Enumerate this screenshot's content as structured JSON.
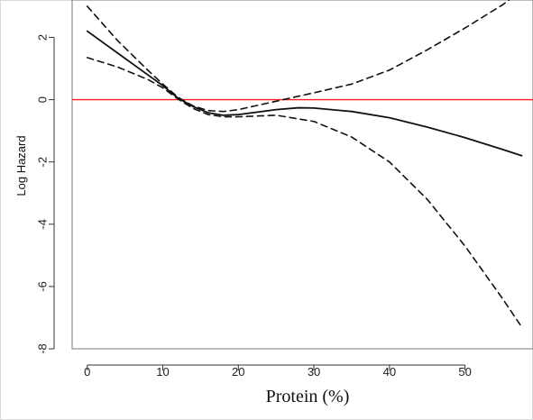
{
  "chart_data": {
    "type": "line",
    "title": "",
    "xlabel": "Protein (%)",
    "ylabel": "Log Hazard",
    "xlim": [
      -2,
      59
    ],
    "ylim": [
      -8,
      3.2
    ],
    "x_ticks": [
      0,
      10,
      20,
      30,
      40,
      50
    ],
    "y_ticks": [
      -8,
      -6,
      -4,
      -2,
      0,
      2
    ],
    "grid": false,
    "legend": "none",
    "reference_line": {
      "y": 0,
      "color": "#ff1f1f"
    },
    "series": [
      {
        "style": "solid",
        "x": [
          0,
          4,
          8,
          10,
          12,
          14,
          16,
          18,
          20,
          25,
          28,
          30,
          35,
          40,
          45,
          50,
          55,
          57.5
        ],
        "y": [
          2.2,
          1.5,
          0.8,
          0.45,
          0.05,
          -0.22,
          -0.42,
          -0.5,
          -0.48,
          -0.32,
          -0.26,
          -0.27,
          -0.38,
          -0.58,
          -0.88,
          -1.22,
          -1.6,
          -1.8
        ]
      },
      {
        "style": "dashed",
        "x": [
          0,
          4,
          8,
          10,
          12,
          14,
          16,
          18,
          20,
          25,
          30,
          35,
          40,
          45,
          50,
          55,
          57.5
        ],
        "y": [
          3.0,
          1.9,
          0.95,
          0.5,
          0.08,
          -0.2,
          -0.35,
          -0.38,
          -0.32,
          -0.05,
          0.22,
          0.5,
          0.95,
          1.6,
          2.3,
          3.05,
          3.5
        ]
      },
      {
        "style": "dashed",
        "x": [
          0,
          4,
          8,
          10,
          12,
          14,
          16,
          18,
          20,
          25,
          30,
          35,
          40,
          45,
          50,
          55,
          57.5
        ],
        "y": [
          1.35,
          1.05,
          0.65,
          0.38,
          0.02,
          -0.28,
          -0.48,
          -0.55,
          -0.55,
          -0.5,
          -0.7,
          -1.2,
          -2.0,
          -3.2,
          -4.7,
          -6.4,
          -7.3
        ]
      }
    ],
    "colors": {
      "lines": "#111111",
      "reference": "#ff1f1f",
      "axes": "#333333"
    }
  }
}
